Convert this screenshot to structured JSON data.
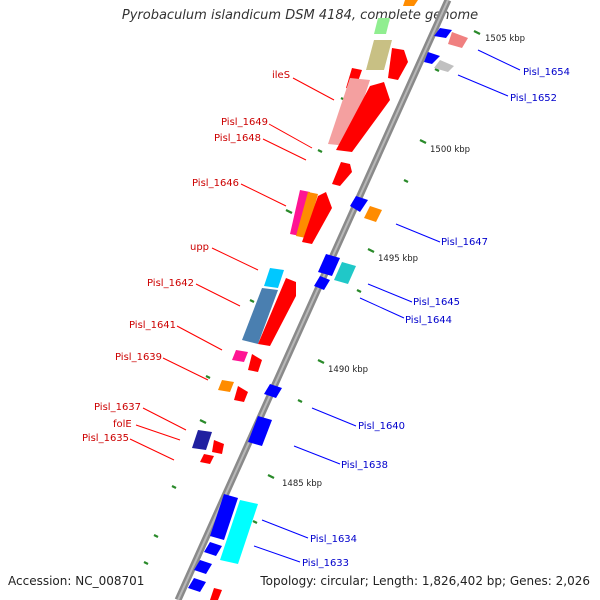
{
  "title": "Pyrobaculum islandicum DSM 4184, complete genome",
  "accession": "Accession: NC_008701",
  "topology": "Topology: circular; Length: 1,826,402 bp; Genes: 2,026",
  "colors": {
    "forward": "#ff0000",
    "reverse": "#0000ff",
    "backbone": "#808080",
    "tick": "#2a8a2a"
  },
  "ticks": [
    {
      "label": "1505 kbp"
    },
    {
      "label": "1500 kbp"
    },
    {
      "label": "1495 kbp"
    },
    {
      "label": "1490 kbp"
    },
    {
      "label": "1485 kbp"
    }
  ],
  "forward_labels": [
    "ileS",
    "Pisl_1649",
    "Pisl_1648",
    "Pisl_1646",
    "upp",
    "Pisl_1642",
    "Pisl_1641",
    "Pisl_1639",
    "Pisl_1637",
    "folE",
    "Pisl_1635"
  ],
  "reverse_labels": [
    "Pisl_1654",
    "Pisl_1652",
    "Pisl_1647",
    "Pisl_1645",
    "Pisl_1644",
    "Pisl_1640",
    "Pisl_1638",
    "Pisl_1634",
    "Pisl_1633"
  ]
}
